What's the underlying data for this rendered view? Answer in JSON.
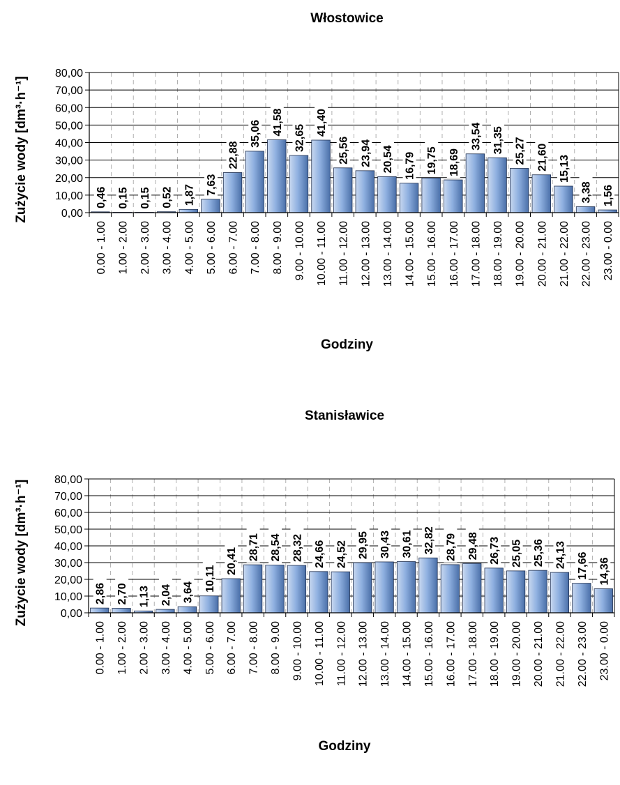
{
  "chart_data": [
    {
      "type": "bar",
      "title": "Włostowice",
      "xlabel": "Godziny",
      "ylabel": "Zużycie wody [dm³·h⁻¹]",
      "ylim": [
        0,
        80
      ],
      "yticks": [
        "0,00",
        "10,00",
        "20,00",
        "30,00",
        "40,00",
        "50,00",
        "60,00",
        "70,00",
        "80,00"
      ],
      "grid": true,
      "categories": [
        "0.00 - 1.00",
        "1.00 - 2.00",
        "2.00 - 3.00",
        "3.00 - 4.00",
        "4.00 - 5.00",
        "5.00 - 6.00",
        "6.00 - 7.00",
        "7.00 - 8.00",
        "8.00 - 9.00",
        "9.00 - 10.00",
        "10.00 - 11.00",
        "11.00 - 12.00",
        "12.00 - 13.00",
        "13.00 - 14.00",
        "14.00 - 15.00",
        "15.00 - 16.00",
        "16.00 - 17.00",
        "17.00 - 18.00",
        "18.00 - 19.00",
        "19.00 - 20.00",
        "20.00 - 21.00",
        "21.00 - 22.00",
        "22.00 - 23.00",
        "23.00 - 0.00"
      ],
      "values": [
        0.46,
        0.15,
        0.15,
        0.52,
        1.87,
        7.63,
        22.88,
        35.06,
        41.58,
        32.65,
        41.4,
        25.56,
        23.94,
        20.54,
        16.79,
        19.75,
        18.69,
        33.54,
        31.35,
        25.27,
        21.6,
        15.13,
        3.38,
        1.56
      ],
      "labels": [
        "0,46",
        "0,15",
        "0,15",
        "0,52",
        "1,87",
        "7,63",
        "22,88",
        "35,06",
        "41,58",
        "32,65",
        "41,40",
        "25,56",
        "23,94",
        "20,54",
        "16,79",
        "19,75",
        "18,69",
        "33,54",
        "31,35",
        "25,27",
        "21,60",
        "15,13",
        "3,38",
        "1,56"
      ]
    },
    {
      "type": "bar",
      "title": "Stanisławice",
      "xlabel": "Godziny",
      "ylabel": "Zużycie wody [dm³·h⁻¹]",
      "ylim": [
        0,
        80
      ],
      "yticks": [
        "0,00",
        "10,00",
        "20,00",
        "30,00",
        "40,00",
        "50,00",
        "60,00",
        "70,00",
        "80,00"
      ],
      "grid": true,
      "categories": [
        "0.00 - 1.00",
        "1.00 - 2.00",
        "2.00 - 3.00",
        "3.00 - 4.00",
        "4.00 - 5.00",
        "5.00 - 6.00",
        "6.00 - 7.00",
        "7.00 - 8.00",
        "8.00 - 9.00",
        "9.00 - 10.00",
        "10.00 - 11.00",
        "11.00 - 12.00",
        "12.00 - 13.00",
        "13.00 - 14.00",
        "14.00 - 15.00",
        "15.00 - 16.00",
        "16.00 - 17.00",
        "17.00 - 18.00",
        "18.00 - 19.00",
        "19.00 - 20.00",
        "20.00 - 21.00",
        "21.00 - 22.00",
        "22.00 - 23.00",
        "23.00 - 0.00"
      ],
      "values": [
        2.86,
        2.7,
        1.13,
        2.04,
        3.64,
        10.11,
        20.41,
        28.71,
        28.54,
        28.32,
        24.66,
        24.52,
        29.95,
        30.43,
        30.61,
        32.82,
        28.79,
        29.48,
        26.73,
        25.05,
        25.36,
        24.13,
        17.66,
        14.36
      ],
      "labels": [
        "2,86",
        "2,70",
        "1,13",
        "2,04",
        "3,64",
        "10,11",
        "20,41",
        "28,71",
        "28,54",
        "28,32",
        "24,66",
        "24,52",
        "29,95",
        "30,43",
        "30,61",
        "32,82",
        "28,79",
        "29,48",
        "26,73",
        "25,05",
        "25,36",
        "24,13",
        "17,66",
        "14,36"
      ]
    }
  ],
  "colors": {
    "bar_light": "#c8d8f0",
    "bar_mid": "#8fb0e0",
    "bar_dark": "#4a6fa8",
    "bar_outline": "#1f2f4f",
    "grid": "#000000",
    "vgrid": "#b0b0b0"
  }
}
